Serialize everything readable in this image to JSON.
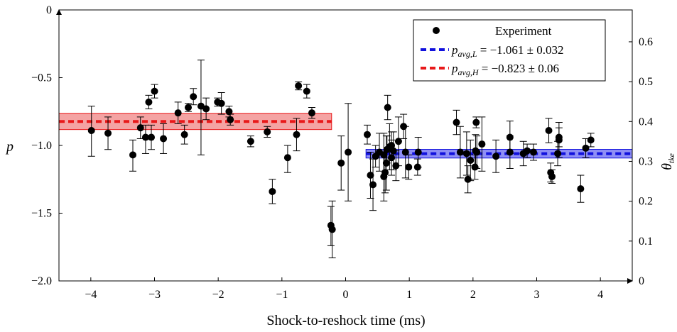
{
  "chart_data": {
    "type": "scatter",
    "xlabel": "Shock-to-reshock time (ms)",
    "ylabel": "p",
    "ylabel_right": "θ_tke",
    "xlim": [
      -4.5,
      4.5
    ],
    "ylim": [
      -2.0,
      0.0
    ],
    "y2lim": [
      0.0,
      0.68
    ],
    "x_ticks": [
      -4,
      -3,
      -2,
      -1,
      0,
      1,
      2,
      3,
      4
    ],
    "x_tick_labels": [
      "−4",
      "−3",
      "−2",
      "−1",
      "0",
      "1",
      "2",
      "3",
      "4"
    ],
    "y_ticks": [
      -2.0,
      -1.5,
      -1.0,
      -0.5,
      0
    ],
    "y_tick_labels": [
      "−2.0",
      "−1.5",
      "−1.0",
      "−0.5",
      "0"
    ],
    "y2_ticks": [
      0,
      0.1,
      0.2,
      0.3,
      0.4,
      0.5,
      0.6
    ],
    "y2_tick_labels": [
      "0",
      "0.1",
      "0.2",
      "0.3",
      "0.4",
      "0.5",
      "0.6"
    ],
    "grid": false,
    "legend_position": "top-right",
    "legend": {
      "experiment": "Experiment",
      "low": {
        "p": "p",
        "sub": "avg,L",
        "value": " = −1.061 ± 0.032"
      },
      "high": {
        "p": "p",
        "sub": "avg,H",
        "value": " = −0.823 ± 0.06"
      }
    },
    "bands": [
      {
        "name": "p_avg,H",
        "mean": -0.823,
        "halfwidth": 0.06,
        "x_range": [
          -4.5,
          -0.22
        ],
        "color": "#e8191a",
        "fill": "#f4a3a3"
      },
      {
        "name": "p_avg,L",
        "mean": -1.061,
        "halfwidth": 0.032,
        "x_range": [
          0.32,
          4.5
        ],
        "color": "#1111dd",
        "fill": "#8f8ff5"
      }
    ],
    "series": [
      {
        "name": "Experiment",
        "points": [
          [
            -3.99,
            -0.89,
            -0.71,
            -1.08
          ],
          [
            -3.73,
            -0.91,
            -0.79,
            -1.03
          ],
          [
            -3.34,
            -1.07,
            -0.96,
            -1.19
          ],
          [
            -3.22,
            -0.87,
            -0.79,
            -0.95
          ],
          [
            -3.14,
            -0.94,
            -0.85,
            -1.06
          ],
          [
            -3.09,
            -0.68,
            -0.63,
            -0.73
          ],
          [
            -3.05,
            -0.94,
            -0.85,
            -1.03
          ],
          [
            -3.0,
            -0.6,
            -0.55,
            -0.65
          ],
          [
            -2.86,
            -0.95,
            -0.84,
            -1.06
          ],
          [
            -2.63,
            -0.76,
            -0.68,
            -0.84
          ],
          [
            -2.53,
            -0.92,
            -0.85,
            -0.99
          ],
          [
            -2.47,
            -0.72,
            -0.69,
            -0.75
          ],
          [
            -2.39,
            -0.64,
            -0.58,
            -0.7
          ],
          [
            -2.27,
            -0.71,
            -0.37,
            -1.07
          ],
          [
            -2.19,
            -0.73,
            -0.65,
            -0.81
          ],
          [
            -2.01,
            -0.68,
            -0.65,
            -0.71
          ],
          [
            -1.95,
            -0.69,
            -0.61,
            -0.77
          ],
          [
            -1.83,
            -0.75,
            -0.71,
            -0.79
          ],
          [
            -1.81,
            -0.81,
            -0.77,
            -0.85
          ],
          [
            -1.49,
            -0.97,
            -0.93,
            -1.01
          ],
          [
            -1.23,
            -0.9,
            -0.86,
            -0.94
          ],
          [
            -1.15,
            -1.34,
            -1.25,
            -1.43
          ],
          [
            -0.91,
            -1.09,
            -1.0,
            -1.2
          ],
          [
            -0.77,
            -0.92,
            -0.8,
            -1.04
          ],
          [
            -0.74,
            -0.56,
            -0.53,
            -0.59
          ],
          [
            -0.61,
            -0.6,
            -0.55,
            -0.65
          ],
          [
            -0.53,
            -0.76,
            -0.72,
            -0.8
          ],
          [
            -0.23,
            -1.59,
            -1.45,
            -1.74
          ],
          [
            -0.21,
            -1.62,
            -1.41,
            -1.83
          ],
          [
            -0.07,
            -1.13,
            -0.93,
            -1.33
          ],
          [
            0.04,
            -1.05,
            -0.69,
            -1.41
          ],
          [
            0.34,
            -0.92,
            -0.85,
            -0.99
          ],
          [
            0.39,
            -1.22,
            -1.05,
            -1.39
          ],
          [
            0.43,
            -1.29,
            -1.1,
            -1.48
          ],
          [
            0.47,
            -1.08,
            -1.0,
            -1.16
          ],
          [
            0.53,
            -1.05,
            -0.91,
            -1.19
          ],
          [
            0.6,
            -1.07,
            -0.91,
            -1.23
          ],
          [
            0.6,
            -1.23,
            -1.05,
            -1.41
          ],
          [
            0.62,
            -1.2,
            -1.05,
            -1.35
          ],
          [
            0.64,
            -1.13,
            -0.93,
            -1.33
          ],
          [
            0.65,
            -1.03,
            -0.93,
            -1.13
          ],
          [
            0.66,
            -0.72,
            -0.63,
            -0.81
          ],
          [
            0.69,
            -1.01,
            -0.84,
            -1.18
          ],
          [
            0.72,
            -1.0,
            -0.9,
            -1.1
          ],
          [
            0.72,
            -1.09,
            -0.96,
            -1.22
          ],
          [
            0.75,
            -1.04,
            -0.9,
            -1.18
          ],
          [
            0.79,
            -1.15,
            -1.04,
            -1.26
          ],
          [
            0.83,
            -0.97,
            -0.79,
            -1.15
          ],
          [
            0.91,
            -0.86,
            -0.77,
            -0.95
          ],
          [
            0.94,
            -1.05,
            -0.86,
            -1.24
          ],
          [
            0.99,
            -1.16,
            -1.07,
            -1.25
          ],
          [
            1.13,
            -1.16,
            -1.1,
            -1.22
          ],
          [
            1.14,
            -1.05,
            -0.94,
            -1.16
          ],
          [
            1.74,
            -0.83,
            -0.74,
            -0.92
          ],
          [
            1.8,
            -1.05,
            -0.86,
            -1.24
          ],
          [
            1.9,
            -1.06,
            -0.9,
            -1.22
          ],
          [
            1.92,
            -1.25,
            -1.15,
            -1.35
          ],
          [
            1.96,
            -1.11,
            -0.96,
            -1.26
          ],
          [
            2.03,
            -1.16,
            -1.07,
            -1.25
          ],
          [
            2.04,
            -1.04,
            -0.92,
            -1.16
          ],
          [
            2.05,
            -0.83,
            -0.79,
            -0.87
          ],
          [
            2.06,
            -1.05,
            -0.93,
            -1.17
          ],
          [
            2.14,
            -0.99,
            -0.79,
            -1.19
          ],
          [
            2.36,
            -1.08,
            -0.96,
            -1.2
          ],
          [
            2.58,
            -0.94,
            -0.82,
            -1.06
          ],
          [
            2.58,
            -1.05,
            -0.93,
            -1.17
          ],
          [
            2.79,
            -1.06,
            -0.97,
            -1.15
          ],
          [
            2.85,
            -1.04,
            -0.99,
            -1.09
          ],
          [
            2.95,
            -1.05,
            -0.99,
            -1.11
          ],
          [
            3.19,
            -0.89,
            -0.8,
            -0.98
          ],
          [
            3.22,
            -1.2,
            -1.13,
            -1.27
          ],
          [
            3.24,
            -1.23,
            -1.18,
            -1.28
          ],
          [
            3.33,
            -1.06,
            -0.97,
            -1.15
          ],
          [
            3.35,
            -0.94,
            -0.87,
            -1.01
          ],
          [
            3.35,
            -0.96,
            -0.83,
            -1.09
          ],
          [
            3.69,
            -1.32,
            -1.22,
            -1.42
          ],
          [
            3.77,
            -1.02,
            -0.95,
            -1.09
          ],
          [
            3.85,
            -0.96,
            -0.91,
            -1.01
          ]
        ]
      }
    ]
  }
}
